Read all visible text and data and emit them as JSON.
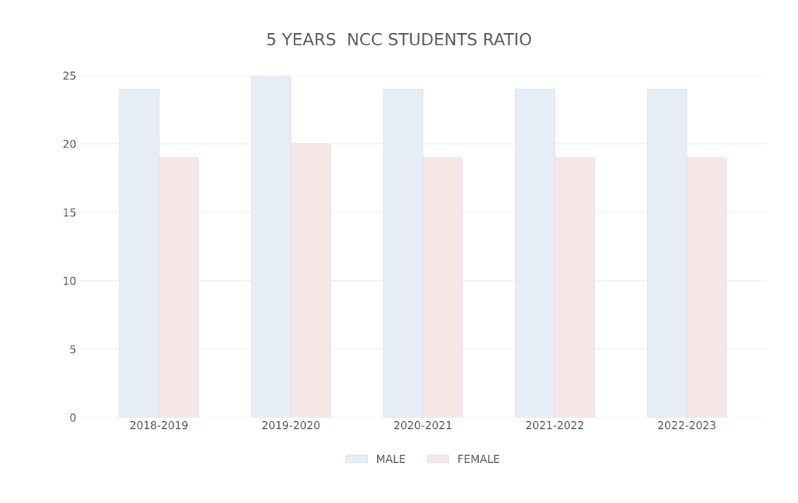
{
  "chart_data": {
    "type": "bar",
    "title": "5 YEARS  NCC STUDENTS RATIO",
    "categories": [
      "2018-2019",
      "2019-2020",
      "2020-2021",
      "2021-2022",
      "2022-2023"
    ],
    "series": [
      {
        "name": "MALE",
        "color": "#e6edf7",
        "values": [
          24,
          25,
          24,
          24,
          24
        ]
      },
      {
        "name": "FEMALE",
        "color": "#f7e6e6",
        "values": [
          19,
          20,
          19,
          19,
          19
        ]
      }
    ],
    "ylim": [
      0,
      25
    ],
    "yticks": [
      0,
      5,
      10,
      15,
      20,
      25
    ],
    "grid": "y",
    "legend": "bottom"
  }
}
